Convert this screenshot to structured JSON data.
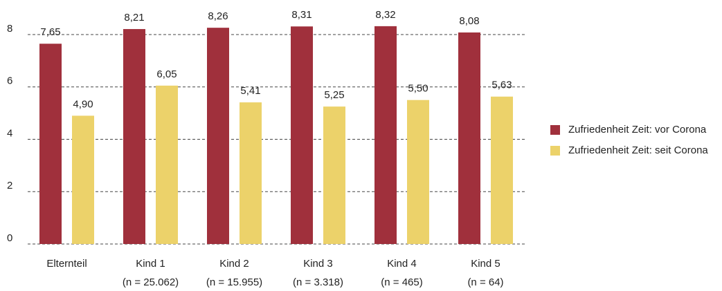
{
  "chart_data": {
    "type": "bar",
    "categories": [
      [
        "Elternteil"
      ],
      [
        "Kind 1",
        "(n = 25.062)"
      ],
      [
        "Kind 2",
        "(n = 15.955)"
      ],
      [
        "Kind 3",
        "(n = 3.318)"
      ],
      [
        "Kind 4",
        "(n = 465)"
      ],
      [
        "Kind 5",
        "(n = 64)"
      ]
    ],
    "series": [
      {
        "name": "Zufriedenheit Zeit: vor Corona",
        "color": "#a0303c",
        "values": [
          7.65,
          8.21,
          8.26,
          8.31,
          8.32,
          8.08
        ],
        "value_labels": [
          "7,65",
          "8,21",
          "8,26",
          "8,31",
          "8,32",
          "8,08"
        ]
      },
      {
        "name": "Zufriedenheit Zeit: seit Corona",
        "color": "#ecd26a",
        "values": [
          4.9,
          6.05,
          5.41,
          5.25,
          5.5,
          5.63
        ],
        "value_labels": [
          "4,90",
          "6,05",
          "5,41",
          "5,25",
          "5,50",
          "5,63"
        ]
      }
    ],
    "ylim": [
      0,
      8
    ],
    "yticks": [
      0,
      2,
      4,
      6,
      8
    ],
    "grid": true,
    "legend": "right"
  }
}
